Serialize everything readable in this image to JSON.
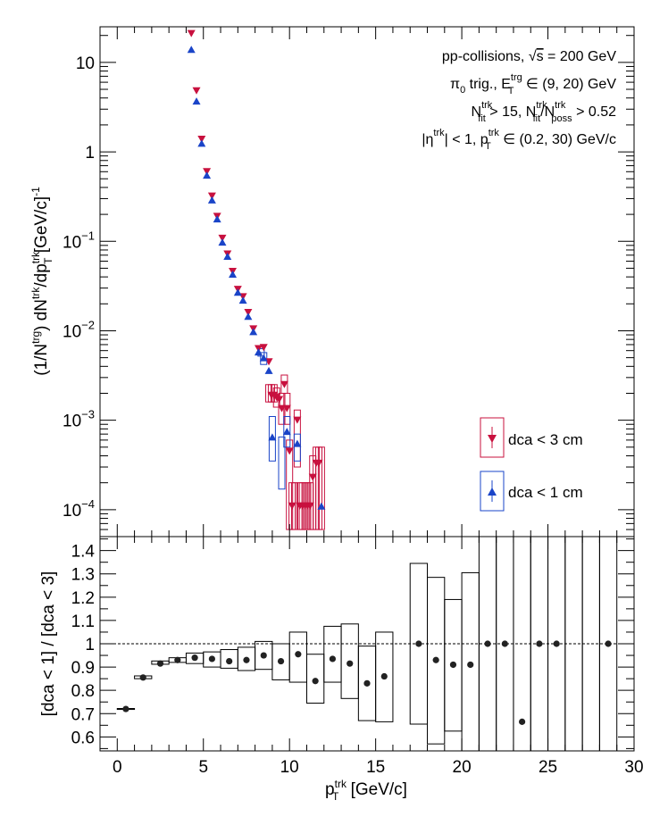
{
  "chart_data": [
    {
      "type": "scatter",
      "panel": "top",
      "yscale": "log",
      "ylim": [
        5e-05,
        25
      ],
      "xlim": [
        -1.0,
        30
      ],
      "ylabel_parts": [
        "(1/N",
        "trg",
        ") dN",
        "trk",
        "/dp",
        "trk",
        "T",
        " [GeV/c]",
        "-1"
      ],
      "yticklabels": [
        {
          "value": 10,
          "mant": "10",
          "exp": ""
        },
        {
          "value": 1,
          "mant": "1",
          "exp": ""
        },
        {
          "value": 0.1,
          "mant": "10",
          "exp": "−1"
        },
        {
          "value": 0.01,
          "mant": "10",
          "exp": "−2"
        },
        {
          "value": 0.001,
          "mant": "10",
          "exp": "−3"
        },
        {
          "value": 0.0001,
          "mant": "10",
          "exp": "−4"
        }
      ],
      "annotations": {
        "line1": "pp-collisions, ",
        "line1_sqrt": "√",
        "line1_s": "s",
        "line1_end": " = 200 GeV",
        "line2_pi": "π",
        "line2_sub0": "0",
        "line2_mid": " trig., E",
        "line2_sup": "trg",
        "line2_subT": "T",
        "line2_end": " ∈ (9, 20) GeV",
        "line3_N": "N",
        "line3_sup": "trk",
        "line3_sub": "fit",
        "line3_mid": " > 15, N",
        "line3_sup2": "trk",
        "line3_sub2": "fit",
        "line3_slash": "/N",
        "line3_sup3": "trk",
        "line3_sub3": "poss",
        "line3_end": " > 0.52",
        "line4_a": "|η",
        "line4_sup": "trk",
        "line4_b": "| < 1, p",
        "line4_sup2": "trk",
        "line4_sub": "T",
        "line4_end": " ∈ (0.2, 30) GeV/c"
      },
      "legend": [
        {
          "label": "dca < 3 cm",
          "color": "#c8103e",
          "marker": "triangle-down"
        },
        {
          "label": "dca < 1 cm",
          "color": "#1a44c8",
          "marker": "triangle-up"
        }
      ],
      "series": [
        {
          "name": "dca < 3 cm",
          "color": "#c8103e",
          "marker": "triangle-down",
          "points": [
            [
              4.3,
              21
            ],
            [
              4.6,
              4.8
            ],
            [
              4.9,
              1.38
            ],
            [
              5.2,
              0.6
            ],
            [
              5.5,
              0.32
            ],
            [
              5.8,
              0.19
            ],
            [
              6.1,
              0.108
            ],
            [
              6.4,
              0.072
            ],
            [
              6.7,
              0.046
            ],
            [
              7.0,
              0.029
            ],
            [
              7.3,
              0.024
            ],
            [
              7.6,
              0.016
            ],
            [
              7.9,
              0.0105
            ],
            [
              8.2,
              0.0063
            ],
            [
              8.5,
              0.0065
            ],
            [
              8.8,
              0.0045
            ],
            [
              8.95,
              0.0019
            ],
            [
              9.1,
              0.0019
            ],
            [
              9.25,
              0.0018
            ],
            [
              9.4,
              0.0017
            ],
            [
              9.55,
              0.00135
            ],
            [
              9.7,
              0.0025
            ],
            [
              9.85,
              0.00135
            ],
            [
              10.0,
              0.00045
            ],
            [
              10.15,
              0.00011
            ],
            [
              10.45,
              0.001
            ],
            [
              10.6,
              0.00011
            ],
            [
              10.75,
              0.00011
            ],
            [
              10.9,
              0.00011
            ],
            [
              11.05,
              0.00011
            ],
            [
              11.2,
              0.00011
            ],
            [
              11.35,
              0.00023
            ],
            [
              11.55,
              0.00033
            ],
            [
              11.7,
              0.00033
            ]
          ],
          "syst": [
            [
              8.8,
              0.0016,
              0.0025
            ],
            [
              8.95,
              0.0016,
              0.0025
            ],
            [
              9.1,
              0.0016,
              0.0025
            ],
            [
              9.25,
              0.0014,
              0.0023
            ],
            [
              9.55,
              0.0009,
              0.002
            ],
            [
              9.7,
              0.002,
              0.0032
            ],
            [
              9.85,
              0.0009,
              0.002
            ],
            [
              10.0,
              6e-05,
              0.0006
            ],
            [
              10.15,
              6e-05,
              0.0002
            ],
            [
              10.3,
              6e-05,
              0.0002
            ],
            [
              10.45,
              0.0003,
              0.0013
            ],
            [
              10.6,
              6e-05,
              0.0002
            ],
            [
              10.75,
              6e-05,
              0.0002
            ],
            [
              10.9,
              6e-05,
              0.0002
            ],
            [
              11.05,
              6e-05,
              0.0002
            ],
            [
              11.2,
              6e-05,
              0.0002
            ],
            [
              11.35,
              6e-05,
              0.0004
            ],
            [
              11.55,
              6e-05,
              0.0005
            ],
            [
              11.7,
              6e-05,
              0.0005
            ],
            [
              11.85,
              6e-05,
              0.0005
            ]
          ]
        },
        {
          "name": "dca < 1 cm",
          "color": "#1a44c8",
          "marker": "triangle-up",
          "points": [
            [
              4.3,
              14
            ],
            [
              4.6,
              3.7
            ],
            [
              4.9,
              1.25
            ],
            [
              5.2,
              0.55
            ],
            [
              5.5,
              0.29
            ],
            [
              5.8,
              0.178
            ],
            [
              6.1,
              0.098
            ],
            [
              6.4,
              0.068
            ],
            [
              6.7,
              0.043
            ],
            [
              7.0,
              0.027
            ],
            [
              7.3,
              0.022
            ],
            [
              7.6,
              0.0145
            ],
            [
              7.9,
              0.0098
            ],
            [
              8.2,
              0.0058
            ],
            [
              8.5,
              0.005
            ],
            [
              8.8,
              0.0036
            ],
            [
              9.0,
              0.00065
            ],
            [
              9.85,
              0.00075
            ],
            [
              10.45,
              0.00055
            ],
            [
              11.85,
              0.00011
            ]
          ],
          "syst": [
            [
              8.35,
              0.0052,
              0.0063
            ],
            [
              8.5,
              0.0042,
              0.0057
            ],
            [
              9.0,
              0.00035,
              0.0011
            ],
            [
              9.55,
              0.00017,
              0.00065
            ],
            [
              9.85,
              0.0005,
              0.0011
            ],
            [
              10.45,
              0.00035,
              0.0007
            ]
          ]
        }
      ]
    },
    {
      "type": "scatter",
      "panel": "ratio",
      "xlabel_parts": [
        "p",
        "trk",
        "T",
        " [GeV/c]"
      ],
      "ylabel": "[dca < 1] / [dca < 3]",
      "xlim": [
        -1.0,
        30
      ],
      "ylim": [
        0.54,
        1.46
      ],
      "xticks": [
        0,
        5,
        10,
        15,
        20,
        25,
        30
      ],
      "yticks": [
        0.6,
        0.7,
        0.8,
        0.9,
        1,
        1.1,
        1.2,
        1.3,
        1.4
      ],
      "ytick_labels": [
        "0.6",
        "0.7",
        "0.8",
        "0.9",
        "1",
        "1.1",
        "1.2",
        "1.3",
        "1.4"
      ],
      "xtick_labels": [
        "0",
        "5",
        "10",
        "15",
        "20",
        "25",
        "30"
      ],
      "reference_line": 1.0,
      "points": [
        [
          0.5,
          0.72
        ],
        [
          1.5,
          0.855
        ],
        [
          2.5,
          0.915
        ],
        [
          3.5,
          0.93
        ],
        [
          4.5,
          0.94
        ],
        [
          5.5,
          0.935
        ],
        [
          6.5,
          0.925
        ],
        [
          7.5,
          0.93
        ],
        [
          8.5,
          0.95
        ],
        [
          9.5,
          0.925
        ],
        [
          10.5,
          0.955
        ],
        [
          11.5,
          0.84
        ],
        [
          12.5,
          0.935
        ],
        [
          13.5,
          0.915
        ],
        [
          14.5,
          0.83
        ],
        [
          15.5,
          0.86
        ],
        [
          17.5,
          1.0
        ],
        [
          18.5,
          0.93
        ],
        [
          19.5,
          0.91
        ],
        [
          20.5,
          0.91
        ],
        [
          21.5,
          1.0
        ],
        [
          22.5,
          1.0
        ],
        [
          23.5,
          0.665
        ],
        [
          24.5,
          1.0
        ],
        [
          25.5,
          1.0
        ],
        [
          28.5,
          1.0
        ]
      ],
      "syst_boxes": [
        [
          0,
          1,
          0.718,
          0.722
        ],
        [
          1,
          2,
          0.85,
          0.862
        ],
        [
          2,
          3,
          0.912,
          0.926
        ],
        [
          3,
          4,
          0.92,
          0.94
        ],
        [
          4,
          5,
          0.915,
          0.96
        ],
        [
          5,
          6,
          0.9,
          0.965
        ],
        [
          6,
          7,
          0.895,
          0.975
        ],
        [
          7,
          8,
          0.885,
          0.985
        ],
        [
          8,
          9,
          0.89,
          1.01
        ],
        [
          9,
          10,
          0.845,
          1.0
        ],
        [
          10,
          11,
          0.835,
          1.05
        ],
        [
          11,
          12,
          0.745,
          0.955
        ],
        [
          12,
          13,
          0.835,
          1.075
        ],
        [
          13,
          14,
          0.765,
          1.085
        ],
        [
          14,
          15,
          0.67,
          0.99
        ],
        [
          15,
          16,
          0.665,
          1.05
        ],
        [
          17,
          18,
          0.655,
          1.345
        ],
        [
          18,
          19,
          0.57,
          1.285
        ],
        [
          19,
          20,
          0.625,
          1.19
        ],
        [
          20,
          21,
          0.52,
          1.305
        ],
        [
          21,
          22,
          0.54,
          1.47
        ],
        [
          22,
          23,
          0.54,
          1.47
        ],
        [
          23,
          24,
          0.54,
          1.47
        ],
        [
          24,
          25,
          0.54,
          1.47
        ],
        [
          25,
          26,
          0.54,
          1.47
        ],
        [
          26,
          27,
          0.54,
          1.47
        ],
        [
          27,
          28,
          0.54,
          1.47
        ],
        [
          28,
          29,
          0.54,
          1.47
        ]
      ]
    }
  ]
}
